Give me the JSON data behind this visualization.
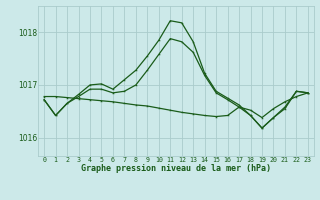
{
  "title": "Graphe pression niveau de la mer (hPa)",
  "background_color": "#cce9e9",
  "grid_color": "#aacccc",
  "line_color": "#1a5c1a",
  "text_color": "#1a5c1a",
  "xlim": [
    -0.5,
    23.5
  ],
  "ylim": [
    1015.65,
    1018.5
  ],
  "yticks": [
    1016,
    1017,
    1018
  ],
  "line1_x": [
    0,
    1,
    2,
    3,
    4,
    5,
    6,
    7,
    8,
    9,
    10,
    11,
    12,
    13,
    14,
    15,
    16,
    17,
    18,
    19,
    20,
    21,
    22,
    23
  ],
  "line1_y": [
    1016.72,
    1016.42,
    1016.65,
    1016.82,
    1017.0,
    1017.02,
    1016.92,
    1017.1,
    1017.28,
    1017.55,
    1017.85,
    1018.22,
    1018.18,
    1017.82,
    1017.22,
    1016.88,
    1016.75,
    1016.62,
    1016.42,
    1016.18,
    1016.38,
    1016.58,
    1016.88,
    1016.85
  ],
  "line2_x": [
    0,
    1,
    2,
    3,
    4,
    5,
    6,
    7,
    8,
    9,
    10,
    11,
    12,
    13,
    14,
    15,
    16,
    17,
    18,
    19,
    20,
    21,
    22,
    23
  ],
  "line2_y": [
    1016.72,
    1016.42,
    1016.65,
    1016.78,
    1016.92,
    1016.92,
    1016.85,
    1016.88,
    1017.0,
    1017.28,
    1017.58,
    1017.88,
    1017.82,
    1017.62,
    1017.18,
    1016.85,
    1016.72,
    1016.58,
    1016.42,
    1016.18,
    1016.38,
    1016.55,
    1016.88,
    1016.85
  ],
  "line3_x": [
    0,
    1,
    2,
    3,
    4,
    5,
    6,
    7,
    8,
    9,
    10,
    11,
    12,
    13,
    14,
    15,
    16,
    17,
    18,
    19,
    20,
    21,
    22,
    23
  ],
  "line3_y": [
    1016.78,
    1016.78,
    1016.76,
    1016.74,
    1016.72,
    1016.7,
    1016.68,
    1016.65,
    1016.62,
    1016.6,
    1016.56,
    1016.52,
    1016.48,
    1016.45,
    1016.42,
    1016.4,
    1016.42,
    1016.58,
    1016.52,
    1016.38,
    1016.55,
    1016.68,
    1016.78,
    1016.85
  ]
}
